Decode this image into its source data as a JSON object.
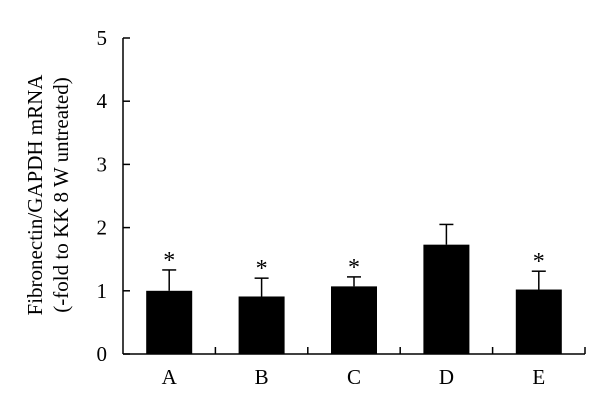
{
  "chart_data": {
    "type": "bar",
    "categories": [
      "A",
      "B",
      "C",
      "D",
      "E"
    ],
    "values": [
      1.0,
      0.91,
      1.07,
      1.73,
      1.02
    ],
    "errors": [
      0.33,
      0.29,
      0.15,
      0.32,
      0.29
    ],
    "annotations": [
      "*",
      "*",
      "*",
      "",
      "*"
    ],
    "title": "",
    "xlabel": "",
    "ylabel_lines": [
      "Fibronectin/GAPDH mRNA",
      "(-fold to KK 8 W untreated)"
    ],
    "ylim": [
      0,
      5
    ],
    "yticks": [
      "0",
      "1",
      "2",
      "3",
      "4",
      "5"
    ],
    "grid": false,
    "colors": {
      "bar": "#000000",
      "axis": "#000000"
    }
  }
}
